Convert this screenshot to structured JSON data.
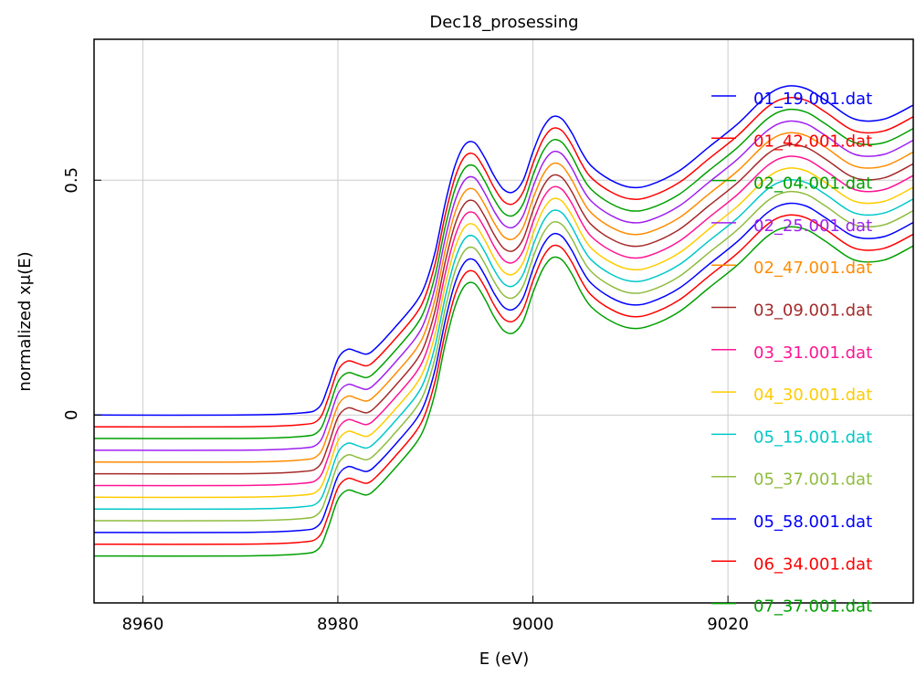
{
  "chart_data": {
    "type": "line",
    "title": "Dec18_prosessing",
    "xlabel": "E (eV)",
    "ylabel": "normalized xμ(E)",
    "xlim": [
      8955,
      9039
    ],
    "ylim": [
      -0.4,
      0.8
    ],
    "xticks": [
      8960,
      8980,
      9000,
      9020
    ],
    "xtick_labels": [
      "8960",
      "8980",
      "9000",
      "9020"
    ],
    "yticks": [
      0,
      0.5
    ],
    "ytick_labels": [
      "0",
      "0.5"
    ],
    "grid": true,
    "legend_position": "right",
    "offset_step": -0.025,
    "base_curve": {
      "x": [
        8955,
        8970,
        8976,
        8978,
        8979,
        8980,
        8981,
        8982,
        8983,
        8984,
        8986,
        8988,
        8989,
        8990,
        8991,
        8992,
        8993,
        8994,
        8995,
        8996,
        8997,
        8998,
        8999,
        9000,
        9001,
        9002,
        9003,
        9004,
        9005,
        9006,
        9008,
        9010,
        9012,
        9015,
        9018,
        9021,
        9024,
        9026,
        9028,
        9030,
        9033,
        9036,
        9039
      ],
      "y": [
        0.0,
        0.0,
        0.004,
        0.015,
        0.06,
        0.12,
        0.14,
        0.135,
        0.13,
        0.145,
        0.19,
        0.24,
        0.28,
        0.35,
        0.45,
        0.53,
        0.575,
        0.58,
        0.55,
        0.51,
        0.48,
        0.475,
        0.5,
        0.56,
        0.61,
        0.635,
        0.63,
        0.6,
        0.56,
        0.53,
        0.5,
        0.485,
        0.49,
        0.52,
        0.57,
        0.62,
        0.68,
        0.7,
        0.695,
        0.67,
        0.63,
        0.63,
        0.66
      ]
    },
    "series": [
      {
        "name": "01_19.001.dat",
        "color": "#0000ff"
      },
      {
        "name": "01_42.001.dat",
        "color": "#ff0000"
      },
      {
        "name": "02_04.001.dat",
        "color": "#00a000"
      },
      {
        "name": "02_25.001.dat",
        "color": "#a020f0"
      },
      {
        "name": "02_47.001.dat",
        "color": "#ff8c00"
      },
      {
        "name": "03_09.001.dat",
        "color": "#a52a2a"
      },
      {
        "name": "03_31.001.dat",
        "color": "#ff1493"
      },
      {
        "name": "04_30.001.dat",
        "color": "#ffcc00"
      },
      {
        "name": "05_15.001.dat",
        "color": "#00c8c8"
      },
      {
        "name": "05_37.001.dat",
        "color": "#8fbc3f"
      },
      {
        "name": "05_58.001.dat",
        "color": "#0000ff"
      },
      {
        "name": "06_34.001.dat",
        "color": "#ff0000"
      },
      {
        "name": "07_37.001.dat",
        "color": "#00a000"
      }
    ]
  }
}
